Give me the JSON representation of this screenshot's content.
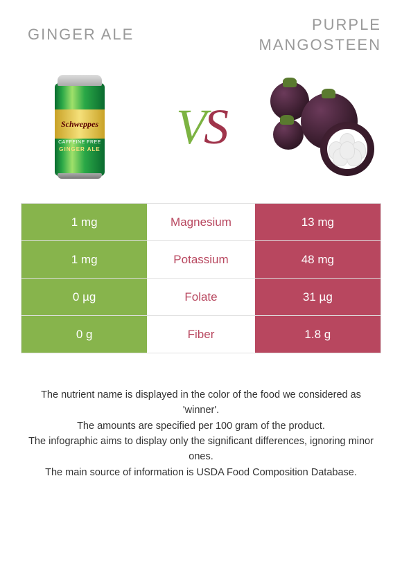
{
  "colors": {
    "left_bar": "#87b44c",
    "right_bar": "#b8475f",
    "title_text": "#9a9a9a",
    "mid_text_left_win": "#87b44c",
    "mid_text_right_win": "#b8475f",
    "row_border": "#e0e0e0",
    "background": "#ffffff"
  },
  "titles": {
    "left": "GINGER ALE",
    "right": "PURPLE\nMANGOSTEEN"
  },
  "vs": {
    "v": "V",
    "s": "S"
  },
  "table": {
    "rows": [
      {
        "left": "1 mg",
        "mid": "Magnesium",
        "right": "13 mg",
        "winner": "right"
      },
      {
        "left": "1 mg",
        "mid": "Potassium",
        "right": "48 mg",
        "winner": "right"
      },
      {
        "left": "0 µg",
        "mid": "Folate",
        "right": "31 µg",
        "winner": "right"
      },
      {
        "left": "0 g",
        "mid": "Fiber",
        "right": "1.8 g",
        "winner": "right"
      }
    ]
  },
  "footer": {
    "p1": "The nutrient name is displayed in the color of the food we considered as 'winner'.",
    "p2": "The amounts are specified per 100 gram of the product.",
    "p3": "The infographic aims to display only the significant differences, ignoring minor ones.",
    "p4": "The main source of information is USDA Food Composition Database."
  }
}
